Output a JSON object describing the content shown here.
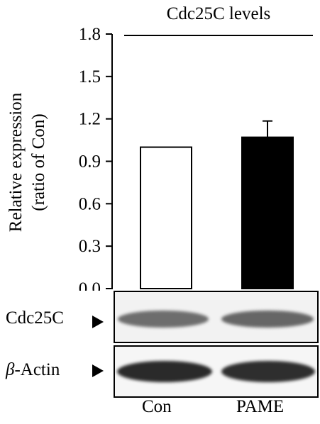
{
  "chart_data": {
    "type": "bar",
    "title": "Cdc25C levels",
    "ylabel_line1": "Relative expression",
    "ylabel_line2": "(ratio of Con)",
    "categories": [
      "Con",
      "PAME"
    ],
    "values": [
      1.0,
      1.07
    ],
    "error": [
      0,
      0.115
    ],
    "bar_colors": [
      "#ffffff",
      "#000000"
    ],
    "ylim": [
      0,
      1.8
    ],
    "yticks": [
      "0.0",
      "0.3",
      "0.6",
      "0.9",
      "1.2",
      "1.5",
      "1.8"
    ],
    "grid": false
  },
  "blots": {
    "cdc25c_label": "Cdc25C",
    "actin_greek": "β",
    "actin_rest": "-Actin"
  }
}
